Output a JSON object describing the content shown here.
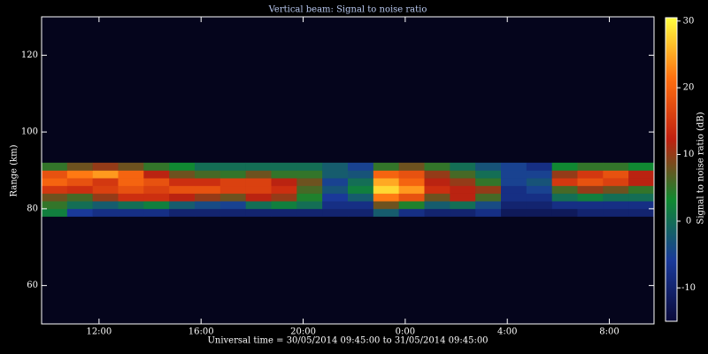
{
  "chart_data": {
    "type": "heatmap",
    "title": "Vertical beam: Signal to noise ratio",
    "x_label": "Universal time = 30/05/2014 09:45:00 to 31/05/2014 09:45:00",
    "y_label": "Range (km)",
    "colorbar_label": "Signal to noise ratio (dB)",
    "xlim": [
      9.75,
      33.75
    ],
    "xticks": [
      {
        "value": 12,
        "label": "12:00"
      },
      {
        "value": 16,
        "label": "16:00"
      },
      {
        "value": 20,
        "label": "20:00"
      },
      {
        "value": 24,
        "label": "0:00"
      },
      {
        "value": 28,
        "label": "4:00"
      },
      {
        "value": 32,
        "label": "8:00"
      }
    ],
    "ylim": [
      50,
      130
    ],
    "yticks": [
      60,
      80,
      100,
      120
    ],
    "clim": [
      -15,
      30.5
    ],
    "cticks": [
      -10,
      0,
      10,
      20,
      30
    ],
    "colorscale": [
      "#0a0a3a",
      "#1a3a9a",
      "#108a30",
      "#c02010",
      "#ff7010",
      "#ffff40"
    ],
    "background": "#05051c",
    "x_bins": [
      9.75,
      10.75,
      11.75,
      12.75,
      13.75,
      14.75,
      15.75,
      16.75,
      17.75,
      18.75,
      19.75,
      20.75,
      21.75,
      22.75,
      23.75,
      24.75,
      25.75,
      26.75,
      27.75,
      28.75,
      29.75,
      30.75,
      31.75,
      32.75,
      33.75
    ],
    "y_bins": [
      78,
      80,
      82,
      84,
      86,
      88,
      90,
      92
    ],
    "z": [
      [
        2,
        -6,
        -8,
        -8,
        -8,
        -10,
        -10,
        -10,
        -10,
        -10,
        -10,
        -10,
        -10,
        -2,
        -8,
        -10,
        -10,
        -8,
        -12,
        -12,
        -12,
        -10,
        -10,
        -10
      ],
      [
        5,
        0,
        -2,
        0,
        2,
        -2,
        -4,
        -5,
        0,
        2,
        0,
        -8,
        -8,
        8,
        4,
        -2,
        0,
        -4,
        -10,
        -10,
        -8,
        -8,
        -8,
        -8
      ],
      [
        8,
        6,
        10,
        14,
        14,
        12,
        10,
        8,
        12,
        10,
        4,
        -6,
        -2,
        22,
        18,
        8,
        12,
        6,
        -8,
        -8,
        0,
        2,
        0,
        0
      ],
      [
        15,
        14,
        16,
        18,
        16,
        18,
        18,
        16,
        16,
        14,
        6,
        -3,
        2,
        28,
        24,
        14,
        12,
        10,
        -8,
        -5,
        6,
        10,
        8,
        5
      ],
      [
        20,
        18,
        15,
        20,
        18,
        14,
        14,
        16,
        16,
        12,
        8,
        -5,
        0,
        25,
        20,
        12,
        10,
        5,
        -5,
        -3,
        15,
        18,
        16,
        12
      ],
      [
        18,
        22,
        24,
        20,
        12,
        8,
        6,
        5,
        8,
        5,
        5,
        -2,
        -3,
        20,
        18,
        10,
        6,
        0,
        -5,
        -5,
        10,
        15,
        18,
        12
      ],
      [
        5,
        8,
        10,
        8,
        5,
        3,
        0,
        0,
        0,
        0,
        0,
        -2,
        -5,
        5,
        8,
        5,
        0,
        -3,
        -5,
        -8,
        3,
        5,
        5,
        3
      ]
    ]
  }
}
